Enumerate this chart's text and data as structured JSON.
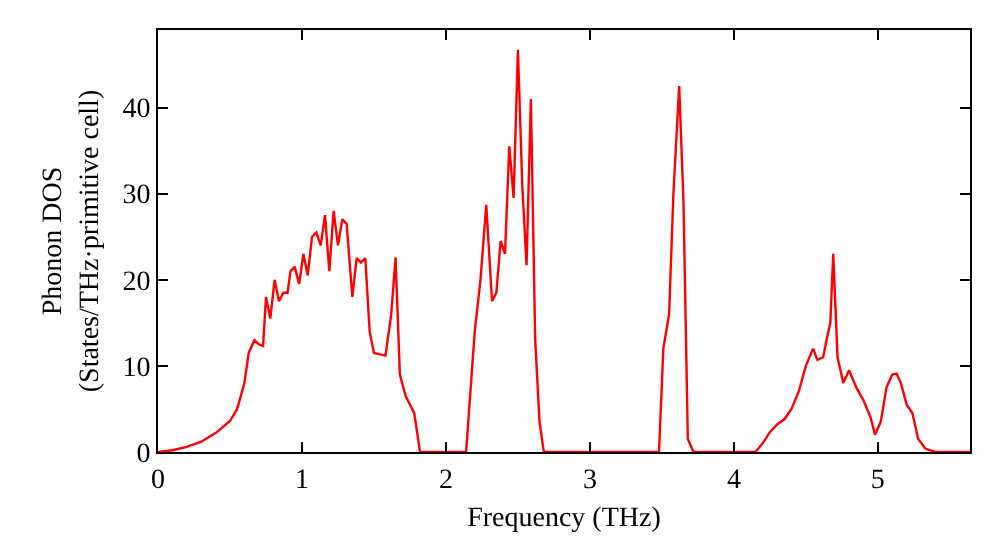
{
  "chart_data": {
    "type": "line",
    "xlabel": "Frequency (THz)",
    "ylabel": "Phonon DOS\n(States/THz·primitive cell)",
    "xlim": [
      0,
      5.64
    ],
    "ylim": [
      0,
      49
    ],
    "xticks": [
      0,
      1,
      2,
      3,
      4,
      5
    ],
    "yticks": [
      0,
      10,
      20,
      30,
      40
    ],
    "grid": false,
    "marker": "none",
    "line_style": "solid",
    "series": [
      {
        "color": "#ff0000",
        "x": [
          0,
          0.1,
          0.2,
          0.3,
          0.4,
          0.5,
          0.55,
          0.6,
          0.63,
          0.67,
          0.7,
          0.73,
          0.75,
          0.78,
          0.81,
          0.84,
          0.87,
          0.9,
          0.92,
          0.95,
          0.98,
          1.01,
          1.04,
          1.07,
          1.1,
          1.13,
          1.16,
          1.19,
          1.22,
          1.25,
          1.28,
          1.31,
          1.35,
          1.38,
          1.41,
          1.44,
          1.47,
          1.5,
          1.55,
          1.58,
          1.62,
          1.65,
          1.68,
          1.72,
          1.78,
          1.82,
          2.14,
          2.2,
          2.24,
          2.28,
          2.32,
          2.35,
          2.38,
          2.41,
          2.44,
          2.47,
          2.5,
          2.53,
          2.56,
          2.59,
          2.62,
          2.65,
          2.68,
          3.48,
          3.51,
          3.55,
          3.58,
          3.62,
          3.65,
          3.68,
          3.72,
          4.15,
          4.2,
          4.25,
          4.3,
          4.35,
          4.4,
          4.45,
          4.5,
          4.55,
          4.58,
          4.62,
          4.65,
          4.67,
          4.69,
          4.72,
          4.76,
          4.8,
          4.85,
          4.9,
          4.95,
          4.98,
          5.02,
          5.06,
          5.1,
          5.13,
          5.16,
          5.2,
          5.24,
          5.28,
          5.33,
          5.4,
          5.64
        ],
        "values": [
          0,
          0.2,
          0.6,
          1.2,
          2.2,
          3.6,
          5,
          8,
          11.5,
          13,
          12.5,
          12.3,
          18,
          15.5,
          20,
          17.5,
          18.5,
          18.5,
          21,
          21.5,
          19.5,
          23,
          20.5,
          25,
          25.5,
          24,
          27.5,
          21,
          28,
          24,
          27,
          26.5,
          18,
          22.5,
          22,
          22.5,
          14,
          11.5,
          11.3,
          11.2,
          16,
          22.6,
          9,
          6.5,
          4.5,
          0,
          0,
          14,
          20,
          28.7,
          17.5,
          18.5,
          24.5,
          23,
          35.5,
          29.5,
          46.7,
          31,
          21.7,
          41,
          13,
          3.5,
          0,
          0,
          12,
          16,
          30,
          42.5,
          29,
          1.5,
          0,
          0,
          1,
          2.3,
          3.2,
          3.8,
          5,
          7,
          10,
          12,
          10.7,
          11,
          13.5,
          15,
          23,
          11,
          8,
          9.5,
          7.5,
          6,
          4,
          2,
          3.5,
          7.5,
          9,
          9.1,
          8,
          5.5,
          4.5,
          1.5,
          0.4,
          0,
          0
        ]
      }
    ]
  }
}
